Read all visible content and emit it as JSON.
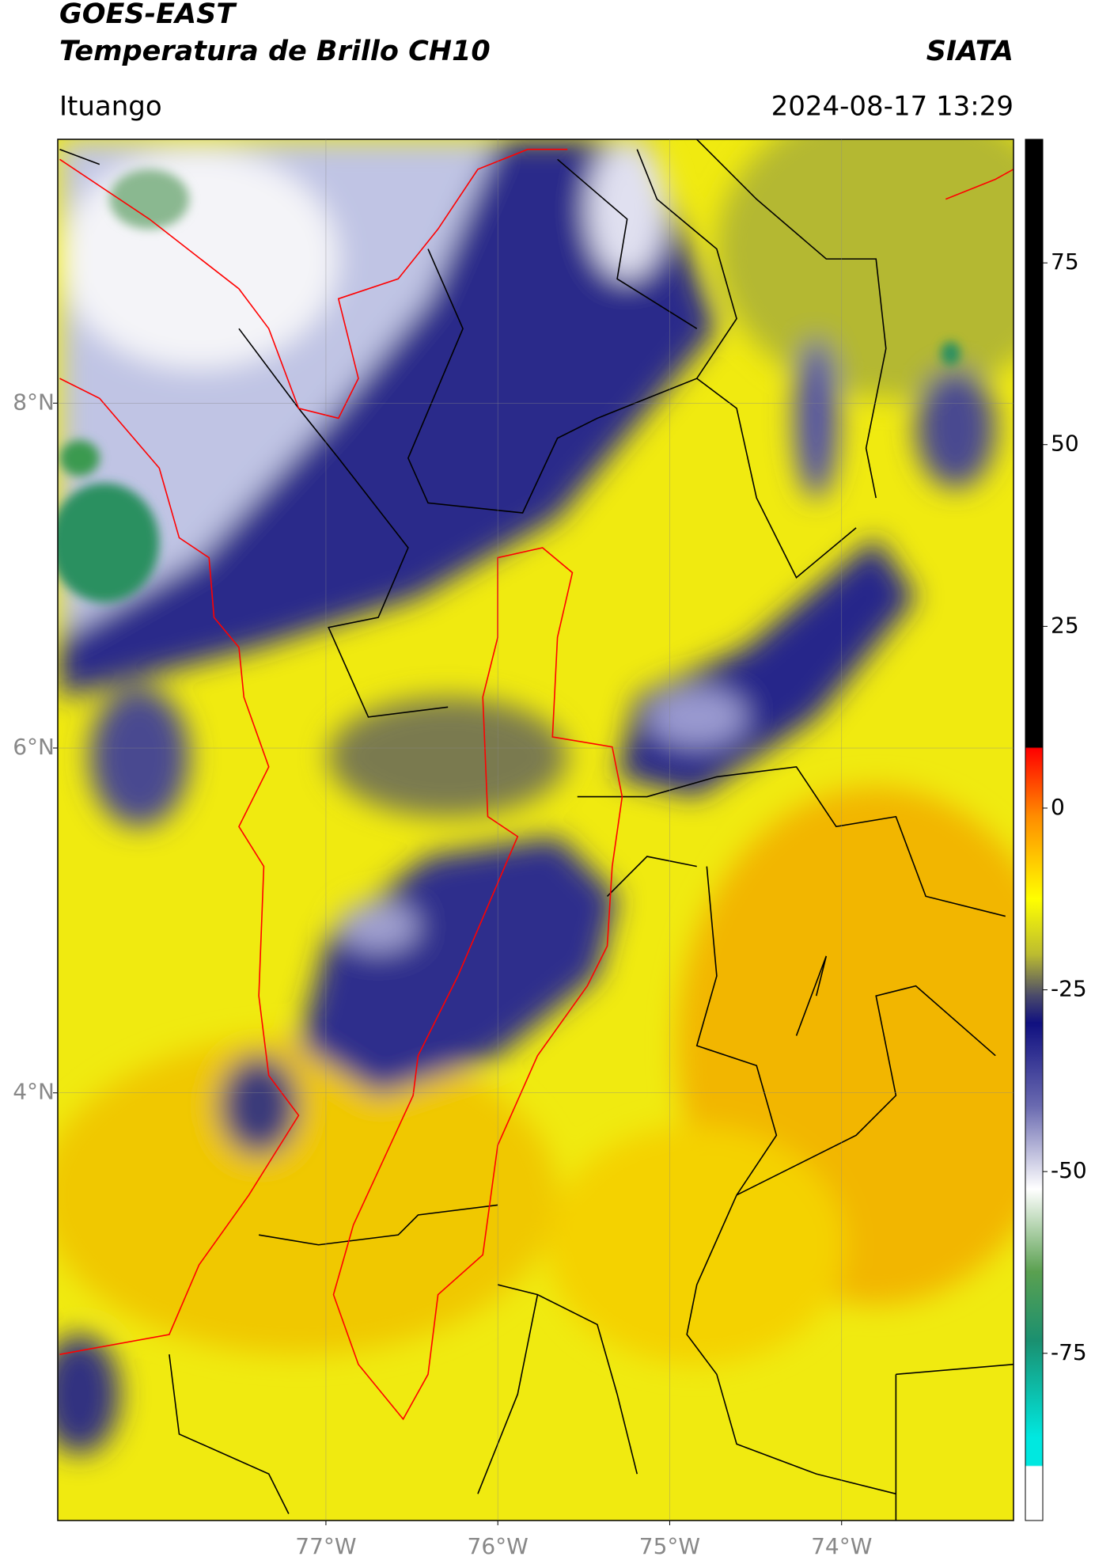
{
  "header": {
    "title": "GOES-EAST",
    "subtitle": "Temperatura de Brillo CH10",
    "org": "SIATA",
    "location": "Ituango",
    "datetime": "2024-08-17 13:29"
  },
  "map": {
    "latlim": [
      1.52,
      9.53
    ],
    "lonlim": [
      -78.56,
      -73.0
    ],
    "lat_ticks": [
      {
        "value": 8,
        "label": "8°N"
      },
      {
        "value": 6,
        "label": "6°N"
      },
      {
        "value": 4,
        "label": "4°N"
      }
    ],
    "lon_ticks": [
      {
        "value": -77,
        "label": "77°W"
      },
      {
        "value": -76,
        "label": "76°W"
      },
      {
        "value": -75,
        "label": "75°W"
      },
      {
        "value": -74,
        "label": "74°W"
      }
    ]
  },
  "colorbar": {
    "lim": [
      -98,
      92
    ],
    "ticks": [
      75,
      50,
      25,
      0,
      -25,
      -50,
      -75
    ]
  }
}
